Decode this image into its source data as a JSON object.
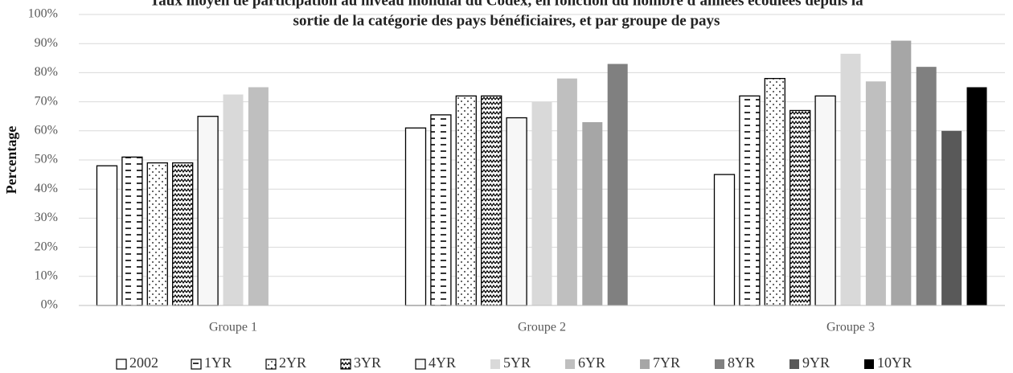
{
  "chart_data": {
    "type": "bar",
    "title_lines": [
      "Taux moyen de participation au niveau mondial du Codex, en fonction du nombre d'années écoulées depuis la",
      "sortie de la catégorie des pays bénéficiaires, et par groupe de pays"
    ],
    "ylabel": "Percentage",
    "categories": [
      "Groupe 1",
      "Groupe 2",
      "Groupe 3"
    ],
    "ylim": [
      0,
      100
    ],
    "yticks": [
      {
        "value": 0,
        "label": "0%"
      },
      {
        "value": 10,
        "label": "10%"
      },
      {
        "value": 20,
        "label": "20%"
      },
      {
        "value": 30,
        "label": "30%"
      },
      {
        "value": 40,
        "label": "40%"
      },
      {
        "value": 50,
        "label": "50%"
      },
      {
        "value": 60,
        "label": "60%"
      },
      {
        "value": 70,
        "label": "70%"
      },
      {
        "value": 80,
        "label": "80%"
      },
      {
        "value": 90,
        "label": "90%"
      },
      {
        "value": 100,
        "label": "100%"
      }
    ],
    "grid": true,
    "legend": "bottom",
    "series": [
      {
        "name": "2002",
        "color": "#ffffff",
        "values": [
          48,
          61,
          45
        ]
      },
      {
        "name": "1YR",
        "color": "#ffffff",
        "pattern": "dash",
        "values": [
          51,
          65.5,
          72
        ]
      },
      {
        "name": "2YR",
        "color": "#ffffff",
        "pattern": "dot",
        "values": [
          49,
          72,
          78
        ]
      },
      {
        "name": "3YR",
        "color": "#ffffff",
        "pattern": "zigzag",
        "values": [
          49,
          72,
          67
        ]
      },
      {
        "name": "4YR",
        "color": "#f7f7f7",
        "values": [
          65,
          64.5,
          72
        ]
      },
      {
        "name": "5YR",
        "color": "#d9d9d9",
        "values": [
          72.5,
          70,
          86.5
        ]
      },
      {
        "name": "6YR",
        "color": "#bfbfbf",
        "values": [
          75,
          78,
          77
        ]
      },
      {
        "name": "7YR",
        "color": "#a6a6a6",
        "values": [
          null,
          63,
          91
        ]
      },
      {
        "name": "8YR",
        "color": "#808080",
        "values": [
          null,
          83,
          82
        ]
      },
      {
        "name": "9YR",
        "color": "#595959",
        "values": [
          null,
          null,
          60
        ]
      },
      {
        "name": "10YR",
        "color": "#000000",
        "values": [
          null,
          null,
          75
        ]
      }
    ]
  }
}
